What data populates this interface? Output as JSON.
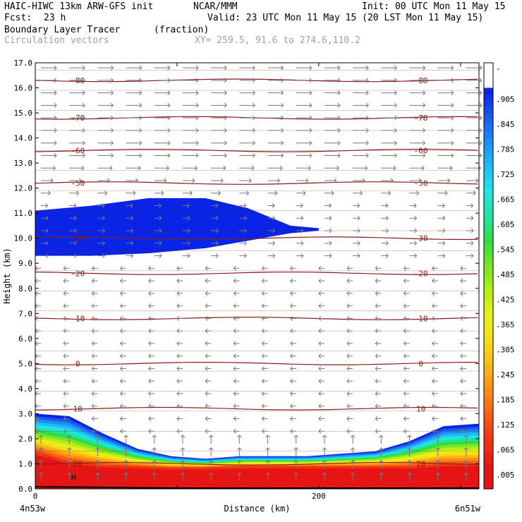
{
  "header": {
    "model": "HAIC-HIWC 13km ARW-GFS init",
    "org": "NCAR/MMM",
    "init": "Init: 00 UTC Mon 11 May 15",
    "fcst_label": "Fcst:",
    "fcst_value": "23 h",
    "valid": "Valid: 23 UTC Mon 11 May 15 (20 LST Mon 11 May 15)",
    "field": "Boundary Layer Tracer",
    "units": "(fraction)",
    "vectors": "Circulation vectors",
    "xy": "XY= 259.5, 91.6 to 274.6,110.2"
  },
  "chart_data": {
    "type": "heatmap",
    "xlabel": "Distance (km)",
    "ylabel": "Height (km)",
    "xlim": [
      0,
      313
    ],
    "ylim": [
      0,
      17
    ],
    "x_ticks": [
      0,
      200
    ],
    "y_ticks": [
      "0.0",
      "1.0",
      "2.0",
      "3.0",
      "4.0",
      "5.0",
      "6.0",
      "7.0",
      "8.0",
      "9.0",
      "10.0",
      "11.0",
      "12.0",
      "13.0",
      "14.0",
      "15.0",
      "16.0",
      "17.0"
    ],
    "x_end_labels": {
      "left": "4n53w",
      "right": "6n51w"
    },
    "surface_label": "H",
    "colorbar": {
      "labels": [
        "-",
        ".905",
        ".845",
        ".785",
        ".725",
        ".665",
        ".605",
        ".545",
        ".485",
        ".425",
        ".365",
        ".305",
        ".245",
        ".185",
        ".125",
        ".065",
        ".005"
      ],
      "colors": [
        "#ffffff",
        "#0a24e6",
        "#1a58f0",
        "#1e8cf5",
        "#1ebcf5",
        "#1ee6e6",
        "#1ee6a0",
        "#32dc3c",
        "#78e628",
        "#b4f014",
        "#e6f01e",
        "#fadc14",
        "#fab414",
        "#fa8c14",
        "#fa5a14",
        "#f03214",
        "#e61414"
      ]
    },
    "isotherms": [
      {
        "label": "-80",
        "z": 16.3
      },
      {
        "label": "-70",
        "z": 14.8
      },
      {
        "label": "-60",
        "z": 13.5
      },
      {
        "label": "-50",
        "z": 12.2
      },
      {
        "label": "-30",
        "z": 10.0
      },
      {
        "label": "-20",
        "z": 8.6
      },
      {
        "label": "-10",
        "z": 6.8
      },
      {
        "label": "0",
        "z": 5.0
      },
      {
        "label": "10",
        "z": 3.2
      },
      {
        "label": "20",
        "z": 1.0
      }
    ],
    "tracer_bands": {
      "fraction_0_005_top_km": [
        3.0,
        2.9,
        2.2,
        1.6,
        1.3,
        1.2,
        1.3,
        1.3,
        1.3,
        1.4,
        1.5,
        1.9,
        2.5,
        2.6
      ],
      "fraction_0_965_top_km": [
        1.5,
        1.1,
        0.95,
        0.9,
        0.85,
        0.85,
        0.9,
        0.9,
        0.9,
        0.9,
        0.9,
        0.9,
        1.0,
        1.0
      ],
      "x_km": [
        0,
        24,
        48,
        72,
        96,
        120,
        144,
        168,
        192,
        216,
        240,
        264,
        288,
        313
      ]
    },
    "upper_cloud_fraction_0_905": {
      "top_km": [
        11.1,
        11.3,
        11.6,
        11.6,
        11.2,
        10.5,
        10.4
      ],
      "bottom_km": [
        9.3,
        9.3,
        9.4,
        9.6,
        9.9,
        10.2,
        10.3
      ],
      "x_km": [
        0,
        40,
        80,
        120,
        150,
        180,
        200
      ]
    }
  }
}
